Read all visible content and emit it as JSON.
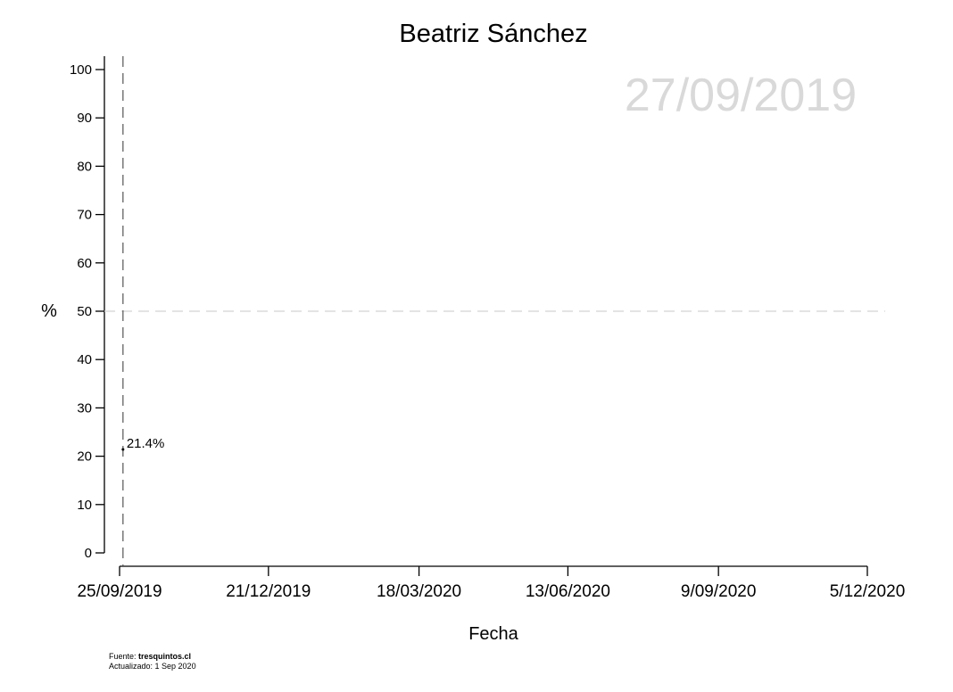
{
  "chart_data": {
    "type": "line",
    "title": "Beatriz Sánchez",
    "watermark_date": "27/09/2019",
    "xlabel": "Fecha",
    "ylabel": "%",
    "x_ticks": [
      "25/09/2019",
      "21/12/2019",
      "18/03/2020",
      "13/06/2020",
      "9/09/2020",
      "5/12/2020"
    ],
    "x_range": [
      "2019-09-25",
      "2020-12-05"
    ],
    "y_ticks": [
      0,
      10,
      20,
      30,
      40,
      50,
      60,
      70,
      80,
      90,
      100
    ],
    "ylim": [
      0,
      100
    ],
    "reference_lines": {
      "horizontal_y": 50,
      "vertical_x": "2019-09-27"
    },
    "series": [
      {
        "x": [
          "2019-09-27"
        ],
        "values": [
          21.4
        ],
        "point_labels": [
          "21.4%"
        ]
      }
    ],
    "colors": {
      "reference_horizontal": "#d3d3d3",
      "reference_vertical": "#555555",
      "watermark": "#d9d9d9"
    },
    "grid": false,
    "legend": "none"
  },
  "footer": {
    "source_prefix": "Fuente: ",
    "source_name": "tresquintos.cl",
    "updated": "Actualizado: 1 Sep 2020"
  }
}
